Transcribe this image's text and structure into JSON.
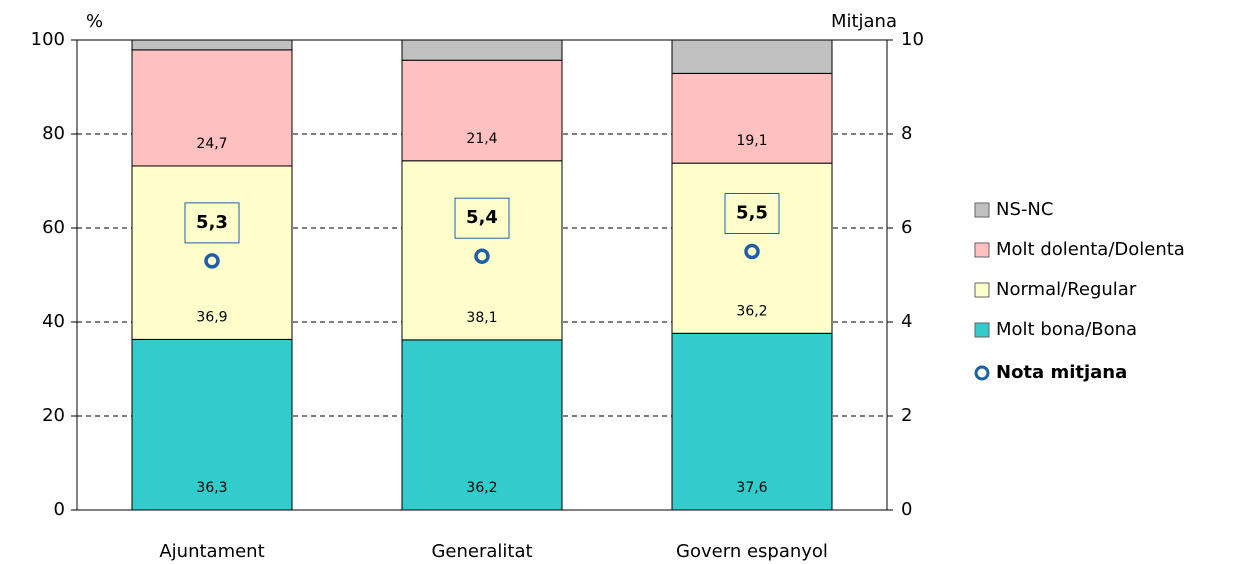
{
  "chart_data": {
    "type": "bar",
    "stacked": true,
    "ylabel": "%",
    "y2label": "Mitjana",
    "categories": [
      "Ajuntament",
      "Generalitat",
      "Govern espanyol"
    ],
    "series": [
      {
        "name": "Molt bona/Bona",
        "color": "#33cccc",
        "values": [
          36.3,
          36.2,
          37.6
        ],
        "value_labels": [
          "36,3",
          "36,2",
          "37,6"
        ]
      },
      {
        "name": "Normal/Regular",
        "color": "#ffffcc",
        "values": [
          36.9,
          38.1,
          36.2
        ],
        "value_labels": [
          "36,9",
          "38,1",
          "36,2"
        ]
      },
      {
        "name": "Molt dolenta/Dolenta",
        "color": "#ffc0c0",
        "values": [
          24.7,
          21.4,
          19.1
        ],
        "value_labels": [
          "24,7",
          "21,4",
          "19,1"
        ]
      },
      {
        "name": "NS-NC",
        "color": "#c0c0c0",
        "values": [
          2.1,
          4.3,
          7.1
        ]
      },
      {
        "name": "Nota mitjana",
        "type": "point",
        "axis": "y2",
        "color": "#1f5fa8",
        "values": [
          5.3,
          5.4,
          5.5
        ],
        "value_labels": [
          "5,3",
          "5,4",
          "5,5"
        ]
      }
    ],
    "ylim": [
      0,
      100
    ],
    "yticks": [
      0,
      20,
      40,
      60,
      80,
      100
    ],
    "y2lim": [
      0,
      10
    ],
    "y2ticks": [
      0,
      2,
      4,
      6,
      8,
      10
    ],
    "grid": true,
    "legend": "right"
  }
}
